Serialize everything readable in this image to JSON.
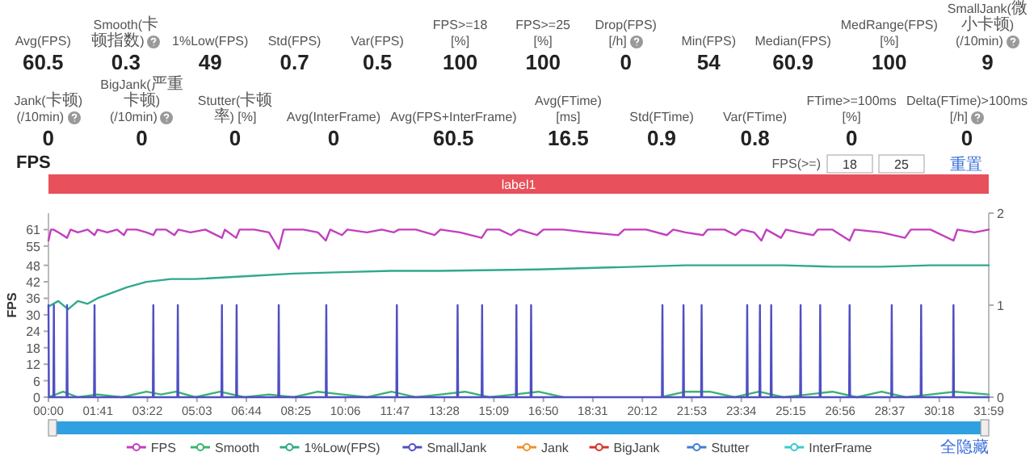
{
  "chart_data": [
    {
      "type": "other",
      "annotations": [
        "Avg(FPS)",
        "60.5",
        "Smooth(卡顿指数)",
        "0.3",
        "1%Low(FPS)",
        "49",
        "Std(FPS)",
        "0.7",
        "Var(FPS)",
        "0.5",
        "FPS>=18 [%]",
        "100",
        "FPS>=25 [%]",
        "100",
        "Drop(FPS) [/h]",
        "0",
        "Min(FPS)",
        "54",
        "Median(FPS)",
        "60.9",
        "MedRange(FPS)[%]",
        "100",
        "SmallJank(微小卡顿) (/10min)",
        "9",
        "Jank(卡顿) (/10min)",
        "0",
        "BigJank(严重卡顿) (/10min)",
        "0",
        "Stutter(卡顿率) [%]",
        "0",
        "Avg(InterFrame)",
        "0",
        "Avg(FPS+InterFrame)",
        "60.5",
        "Avg(FTime) [ms]",
        "16.5",
        "Std(FTime)",
        "0.9",
        "Var(FTime)",
        "0.8",
        "FTime>=100ms [%]",
        "0",
        "Delta(FTime)>100ms [/h]",
        "0"
      ]
    },
    {
      "type": "line",
      "title": "FPS",
      "ylabel": "FPS",
      "legend": "bottom",
      "annotations": [
        "FPS(>=)",
        "18",
        "25",
        "重置",
        "全隐藏",
        "label1"
      ],
      "xlim": [
        0,
        1919
      ],
      "xticks": [
        {
          "value": 0,
          "label": "00:00"
        },
        {
          "value": 101,
          "label": "01:41"
        },
        {
          "value": 202,
          "label": "03:22"
        },
        {
          "value": 303,
          "label": "05:03"
        },
        {
          "value": 404,
          "label": "06:44"
        },
        {
          "value": 505,
          "label": "08:25"
        },
        {
          "value": 606,
          "label": "10:06"
        },
        {
          "value": 707,
          "label": "11:47"
        },
        {
          "value": 808,
          "label": "13:28"
        },
        {
          "value": 909,
          "label": "15:09"
        },
        {
          "value": 1010,
          "label": "16:50"
        },
        {
          "value": 1111,
          "label": "18:31"
        },
        {
          "value": 1212,
          "label": "20:12"
        },
        {
          "value": 1313,
          "label": "21:53"
        },
        {
          "value": 1414,
          "label": "23:34"
        },
        {
          "value": 1515,
          "label": "25:15"
        },
        {
          "value": 1616,
          "label": "26:56"
        },
        {
          "value": 1717,
          "label": "28:37"
        },
        {
          "value": 1818,
          "label": "30:18"
        },
        {
          "value": 1919,
          "label": "31:59"
        }
      ],
      "ylim": [
        0,
        67
      ],
      "yticks": [
        0,
        6,
        12,
        18,
        24,
        30,
        36,
        42,
        48,
        55,
        61
      ],
      "y2lim": [
        0,
        2
      ],
      "y2ticks": [
        0,
        1,
        2
      ],
      "series": [
        {
          "name": "FPS",
          "color": "#c23fbe",
          "x": [
            0,
            5,
            10,
            20,
            38,
            45,
            60,
            80,
            94,
            100,
            120,
            140,
            154,
            160,
            180,
            200,
            214,
            220,
            240,
            257,
            265,
            290,
            320,
            354,
            360,
            383,
            390,
            420,
            450,
            470,
            480,
            520,
            550,
            566,
            575,
            599,
            610,
            650,
            680,
            705,
            715,
            750,
            788,
            800,
            840,
            884,
            895,
            920,
            944,
            960,
            997,
            1010,
            1050,
            1100,
            1163,
            1175,
            1220,
            1262,
            1275,
            1300,
            1336,
            1345,
            1380,
            1402,
            1415,
            1440,
            1455,
            1465,
            1495,
            1505,
            1530,
            1561,
            1570,
            1600,
            1635,
            1645,
            1700,
            1748,
            1760,
            1800,
            1847,
            1855,
            1890,
            1919
          ],
          "values": [
            57,
            61,
            61,
            60,
            58,
            61,
            60,
            61,
            59,
            61,
            60,
            61,
            59,
            61,
            61,
            60,
            59,
            61,
            61,
            59,
            61,
            60,
            61,
            58,
            61,
            58,
            61,
            61,
            60,
            54,
            61,
            61,
            60,
            57,
            61,
            59,
            61,
            60,
            61,
            60,
            61,
            61,
            59,
            61,
            60,
            58,
            61,
            61,
            59,
            61,
            59,
            61,
            61,
            60,
            59,
            61,
            61,
            59,
            61,
            60,
            59,
            61,
            61,
            59,
            61,
            60,
            57,
            61,
            58,
            61,
            60,
            59,
            61,
            61,
            57,
            61,
            60,
            58,
            61,
            61,
            57,
            61,
            60,
            61
          ]
        },
        {
          "name": "Smooth",
          "color": "#3cb371",
          "x": [
            0,
            30,
            60,
            100,
            150,
            200,
            230,
            260,
            300,
            350,
            400,
            450,
            500,
            550,
            600,
            650,
            700,
            750,
            800,
            850,
            900,
            950,
            1000,
            1050,
            1100,
            1150,
            1200,
            1250,
            1300,
            1350,
            1400,
            1450,
            1500,
            1550,
            1600,
            1650,
            1700,
            1750,
            1800,
            1850,
            1919
          ],
          "values": [
            0,
            2,
            0,
            1,
            0,
            2,
            1,
            2,
            0,
            2,
            0,
            1,
            0,
            2,
            1,
            0,
            2,
            0,
            1,
            2,
            0,
            1,
            2,
            0,
            null,
            null,
            null,
            0,
            2,
            2,
            0,
            2,
            0,
            1,
            2,
            0,
            2,
            0,
            1,
            2,
            1
          ]
        },
        {
          "name": "1%Low(FPS)",
          "color": "#2fa98c",
          "x": [
            0,
            20,
            40,
            60,
            80,
            100,
            130,
            160,
            200,
            250,
            300,
            400,
            500,
            600,
            700,
            800,
            1000,
            1200,
            1300,
            1400,
            1500,
            1600,
            1700,
            1800,
            1919
          ],
          "values": [
            33,
            35,
            32,
            35,
            34,
            36,
            38,
            40,
            42,
            43,
            43,
            44,
            45,
            45.5,
            46,
            46,
            46.5,
            47.5,
            48,
            48,
            48,
            47.5,
            47.5,
            48,
            48
          ]
        },
        {
          "name": "SmallJank",
          "color": "#4f4fc4",
          "axis": "y2",
          "x": [
            0,
            1,
            10,
            11,
            12,
            37,
            38,
            39,
            93,
            94,
            95,
            213,
            214,
            215,
            263,
            264,
            265,
            353,
            354,
            355,
            383,
            384,
            385,
            469,
            470,
            471,
            566,
            567,
            568,
            710,
            711,
            712,
            834,
            835,
            836,
            884,
            885,
            886,
            954,
            955,
            956,
            984,
            985,
            986,
            1252,
            1253,
            1254,
            1295,
            1296,
            1297,
            1332,
            1333,
            1334,
            1425,
            1426,
            1427,
            1451,
            1452,
            1453,
            1474,
            1475,
            1476,
            1534,
            1535,
            1536,
            1574,
            1575,
            1576,
            1634,
            1635,
            1636,
            1720,
            1721,
            1722,
            1780,
            1781,
            1782,
            1846,
            1847,
            1848,
            1919
          ],
          "values": [
            1,
            0,
            0,
            1,
            0,
            0,
            1,
            0,
            0,
            1,
            0,
            0,
            1,
            0,
            0,
            1,
            0,
            0,
            1,
            0,
            0,
            1,
            0,
            0,
            1,
            0,
            0,
            1,
            0,
            0,
            1,
            0,
            0,
            1,
            0,
            0,
            1,
            0,
            0,
            1,
            0,
            0,
            1,
            0,
            0,
            1,
            0,
            0,
            1,
            0,
            0,
            1,
            0,
            0,
            1,
            0,
            0,
            1,
            0,
            0,
            1,
            0,
            0,
            1,
            0,
            0,
            1,
            0,
            0,
            1,
            0,
            0,
            1,
            0,
            0,
            1,
            0,
            0,
            1,
            0,
            0
          ]
        },
        {
          "name": "Jank",
          "color": "#f0902a",
          "axis": "y2"
        },
        {
          "name": "BigJank",
          "color": "#d9322d",
          "axis": "y2"
        },
        {
          "name": "Stutter",
          "color": "#3f7fd0",
          "axis": "y2"
        },
        {
          "name": "InterFrame",
          "color": "#3cc8d2"
        }
      ]
    }
  ]
}
